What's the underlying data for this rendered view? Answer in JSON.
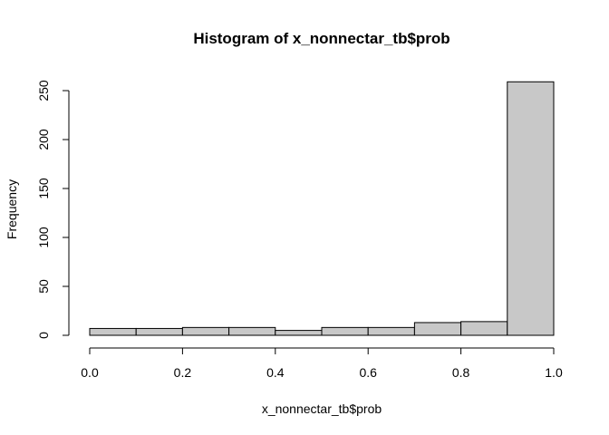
{
  "chart_data": {
    "type": "histogram",
    "title": "Histogram of x_nonnectar_tb$prob",
    "xlabel": "x_nonnectar_tb$prob",
    "ylabel": "Frequency",
    "bins": [
      {
        "x0": 0.0,
        "x1": 0.1,
        "value": 7
      },
      {
        "x0": 0.1,
        "x1": 0.2,
        "value": 7
      },
      {
        "x0": 0.2,
        "x1": 0.3,
        "value": 8
      },
      {
        "x0": 0.3,
        "x1": 0.4,
        "value": 8
      },
      {
        "x0": 0.4,
        "x1": 0.5,
        "value": 5
      },
      {
        "x0": 0.5,
        "x1": 0.6,
        "value": 8
      },
      {
        "x0": 0.6,
        "x1": 0.7,
        "value": 8
      },
      {
        "x0": 0.7,
        "x1": 0.8,
        "value": 13
      },
      {
        "x0": 0.8,
        "x1": 0.9,
        "value": 14
      },
      {
        "x0": 0.9,
        "x1": 1.0,
        "value": 259
      }
    ],
    "xlim": [
      0.0,
      1.0
    ],
    "ylim": [
      0,
      250
    ],
    "x_ticks": [
      "0.0",
      "0.2",
      "0.4",
      "0.6",
      "0.8",
      "1.0"
    ],
    "y_ticks": [
      "0",
      "50",
      "100",
      "150",
      "200",
      "250"
    ],
    "bar_fill": "#c8c8c8",
    "bar_stroke": "#000000",
    "grid": false,
    "legend": "none"
  }
}
